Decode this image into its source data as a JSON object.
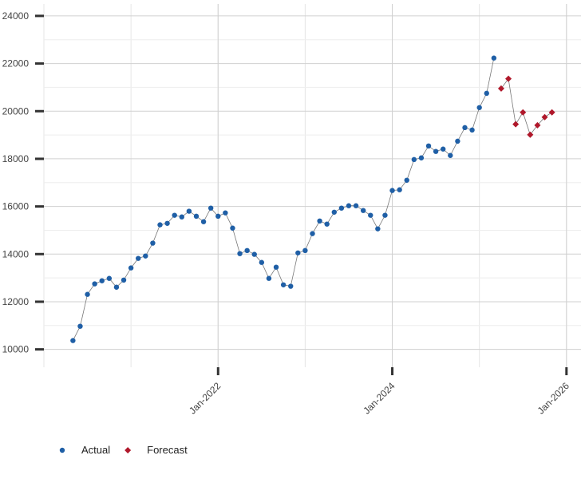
{
  "chart_data": {
    "type": "line",
    "xlim": [
      "2020-01",
      "2026-03"
    ],
    "ylim": [
      9250,
      24500
    ],
    "yticks": [
      10000,
      12000,
      14000,
      16000,
      18000,
      20000,
      22000,
      24000
    ],
    "xticks": [
      {
        "value": "2022-01",
        "label": "Jan-2022"
      },
      {
        "value": "2024-01",
        "label": "Jan-2024"
      },
      {
        "value": "2026-01",
        "label": "Jan-2026"
      }
    ],
    "grid": true,
    "legend": "bottom-left",
    "series": [
      {
        "name": "Actual",
        "color": "#1f5fa6",
        "marker": "circle",
        "x": [
          "2020-05",
          "2020-06",
          "2020-07",
          "2020-08",
          "2020-09",
          "2020-10",
          "2020-11",
          "2020-12",
          "2021-01",
          "2021-02",
          "2021-03",
          "2021-04",
          "2021-05",
          "2021-06",
          "2021-07",
          "2021-08",
          "2021-09",
          "2021-10",
          "2021-11",
          "2021-12",
          "2022-01",
          "2022-02",
          "2022-03",
          "2022-04",
          "2022-05",
          "2022-06",
          "2022-07",
          "2022-08",
          "2022-09",
          "2022-10",
          "2022-11",
          "2022-12",
          "2023-01",
          "2023-02",
          "2023-03",
          "2023-04",
          "2023-05",
          "2023-06",
          "2023-07",
          "2023-08",
          "2023-09",
          "2023-10",
          "2023-11",
          "2023-12",
          "2024-01",
          "2024-02",
          "2024-03",
          "2024-04",
          "2024-05",
          "2024-06",
          "2024-07",
          "2024-08",
          "2024-09",
          "2024-10",
          "2024-11",
          "2024-12",
          "2025-01",
          "2025-02",
          "2025-03"
        ],
        "values": [
          10370,
          10970,
          12310,
          12750,
          12880,
          12980,
          12610,
          12910,
          13420,
          13820,
          13920,
          14460,
          15230,
          15290,
          15630,
          15560,
          15800,
          15590,
          15360,
          15930,
          15590,
          15730,
          15090,
          14020,
          14150,
          13990,
          13650,
          12980,
          13450,
          12710,
          12650,
          14050,
          14150,
          14860,
          15390,
          15260,
          15760,
          15930,
          16030,
          16030,
          15830,
          15630,
          15060,
          15630,
          16670,
          16700,
          17100,
          17970,
          18040,
          18540,
          18310,
          18410,
          18140,
          18740,
          19310,
          19210,
          20150,
          20750,
          22230
        ]
      },
      {
        "name": "Forecast",
        "color": "#b0182b",
        "marker": "diamond",
        "x": [
          "2025-04",
          "2025-05",
          "2025-06",
          "2025-07",
          "2025-08",
          "2025-09",
          "2025-10",
          "2025-11"
        ],
        "values": [
          20950,
          21360,
          19450,
          19950,
          19010,
          19410,
          19750,
          19950
        ]
      }
    ]
  }
}
